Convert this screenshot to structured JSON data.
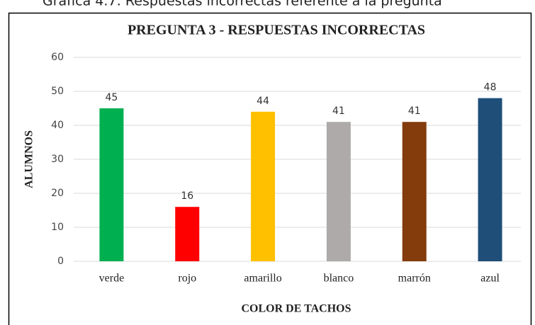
{
  "caption": "Gráfica 4.7: Respuestas incorrectas referente a la pregunta",
  "chart_data": {
    "type": "bar",
    "title": "PREGUNTA 3 - RESPUESTAS INCORRECTAS",
    "xlabel": "COLOR DE TACHOS",
    "ylabel": "ALUMNOS",
    "categories": [
      "verde",
      "rojo",
      "amarillo",
      "blanco",
      "marrón",
      "azul"
    ],
    "values": [
      45,
      16,
      44,
      41,
      41,
      48
    ],
    "colors": [
      "#00b050",
      "#ff0000",
      "#ffc000",
      "#aeaaaa",
      "#843c0c",
      "#1f4e79"
    ],
    "ylim": [
      0,
      60
    ],
    "yticks": [
      0,
      10,
      20,
      30,
      40,
      50,
      60
    ],
    "grid": true
  }
}
